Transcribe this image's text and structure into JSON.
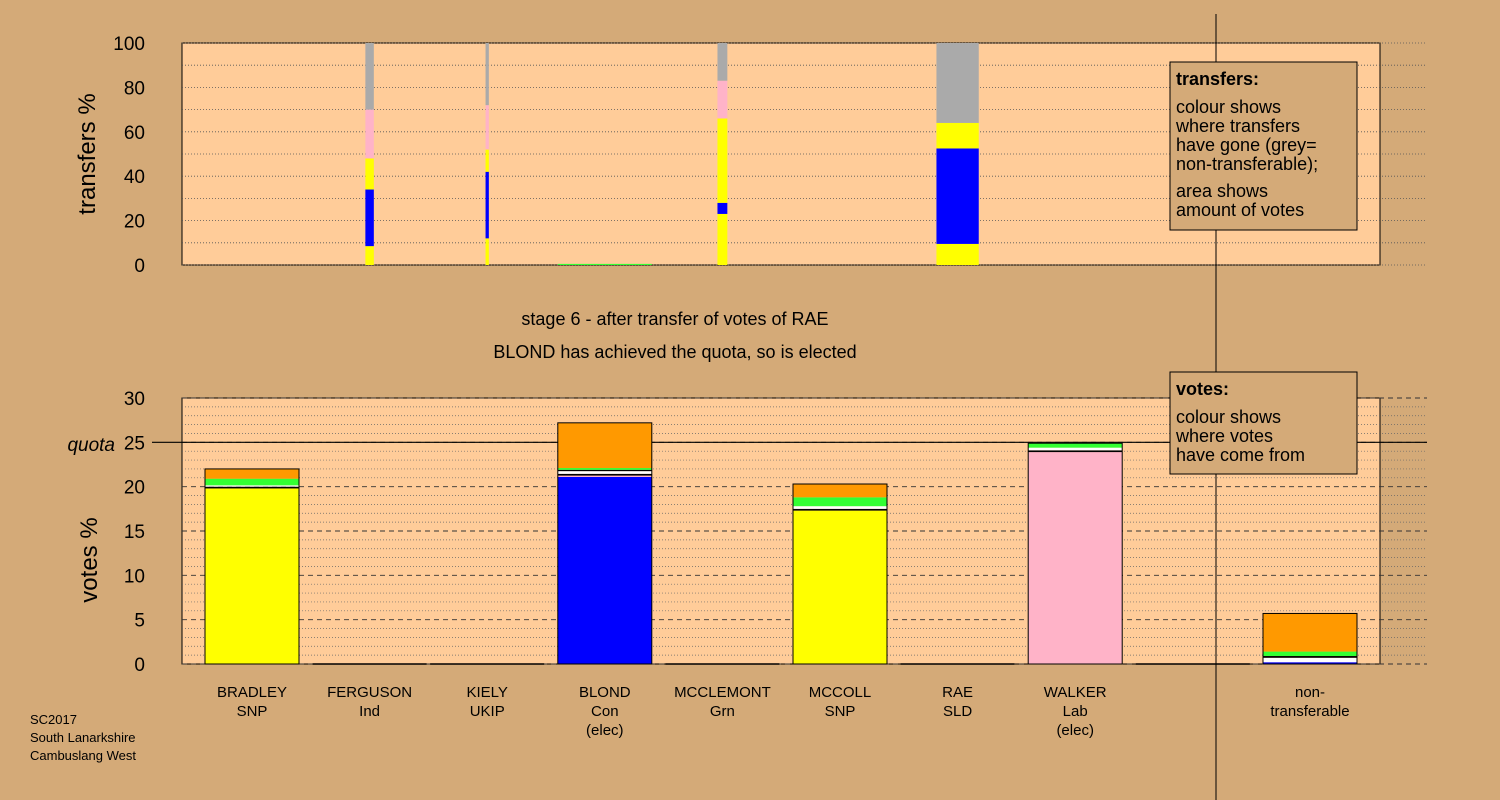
{
  "stage_text": {
    "line1": "stage 6 - after transfer of votes of RAE",
    "line2": "BLOND has achieved the quota, so is elected"
  },
  "footer": {
    "line1": "SC2017",
    "line2": "South Lanarkshire",
    "line3": "Cambuslang West"
  },
  "colors": {
    "background": "#d4aa78",
    "plot_bg": "#ffcc99",
    "SNP": "#ffff00",
    "Con": "#0000ff",
    "Lab": "#ffb3c8",
    "Grn": "#33ff33",
    "UKIP": "#ffffff",
    "Ind": "#000000",
    "SLD": "#ff9900",
    "nontransferable": "#aaaaaa"
  },
  "chart_data": [
    {
      "type": "bar",
      "stacked": true,
      "ylabel": "transfers %",
      "ylim": [
        0,
        100
      ],
      "yticks": [
        "0",
        "20",
        "40",
        "60",
        "80",
        "100"
      ],
      "grid": "dotted",
      "legend": {
        "position": "top-right",
        "title": "transfers:",
        "line1": "colour shows",
        "line2": "where transfers",
        "line3": "have gone (grey=",
        "line4": "non-transferable);",
        "line5": "area shows",
        "line6": "amount of votes"
      },
      "bars": [
        {
          "candidate": "FERGUSON",
          "width_share": 0.09,
          "segments": [
            {
              "party": "SNP",
              "value": 8.5
            },
            {
              "party": "Con",
              "value": 25.5
            },
            {
              "party": "SNP",
              "value": 14
            },
            {
              "party": "Lab",
              "value": 22
            },
            {
              "party": "nontransferable",
              "value": 30
            }
          ]
        },
        {
          "candidate": "KIELY",
          "width_share": 0.035,
          "segments": [
            {
              "party": "SNP",
              "value": 12
            },
            {
              "party": "Con",
              "value": 30
            },
            {
              "party": "SNP",
              "value": 10
            },
            {
              "party": "Lab",
              "value": 20
            },
            {
              "party": "nontransferable",
              "value": 28
            }
          ]
        },
        {
          "candidate": "MCCLEMONT",
          "width_share": 0.105,
          "segments": [
            {
              "party": "SNP",
              "value": 23
            },
            {
              "party": "Con",
              "value": 5
            },
            {
              "party": "SNP",
              "value": 38
            },
            {
              "party": "Lab",
              "value": 17
            },
            {
              "party": "nontransferable",
              "value": 17
            }
          ]
        },
        {
          "candidate": "RAE",
          "width_share": 0.45,
          "segments": [
            {
              "party": "SNP",
              "value": 9.5
            },
            {
              "party": "Con",
              "value": 43
            },
            {
              "party": "SNP",
              "value": 11.5
            },
            {
              "party": "nontransferable",
              "value": 36
            }
          ]
        },
        {
          "candidate": "BLOND",
          "width_share": 1.0,
          "segments": [
            {
              "party": "Grn",
              "value": 0.5
            }
          ]
        }
      ]
    },
    {
      "type": "bar",
      "stacked": true,
      "ylabel": "votes %",
      "ylim": [
        0,
        30
      ],
      "yticks": [
        "0",
        "5",
        "10",
        "15",
        "20",
        "25",
        "30"
      ],
      "quota": 25,
      "quota_label": "quota",
      "grid": "dotted",
      "legend": {
        "position": "top-right",
        "title": "votes:",
        "line1": "colour shows",
        "line2": "where votes",
        "line3": "have come from"
      },
      "categories": [
        {
          "name": "BRADLEY",
          "party": "SNP",
          "note": ""
        },
        {
          "name": "FERGUSON",
          "party": "Ind",
          "note": ""
        },
        {
          "name": "KIELY",
          "party": "UKIP",
          "note": ""
        },
        {
          "name": "BLOND",
          "party": "Con",
          "note": "(elec)"
        },
        {
          "name": "MCCLEMONT",
          "party": "Grn",
          "note": ""
        },
        {
          "name": "MCCOLL",
          "party": "SNP",
          "note": ""
        },
        {
          "name": "RAE",
          "party": "SLD",
          "note": ""
        },
        {
          "name": "WALKER",
          "party": "Lab",
          "note": "(elec)"
        },
        {
          "name": "",
          "party": "",
          "note": ""
        },
        {
          "name": "non-",
          "party": "transferable",
          "note": ""
        }
      ],
      "stacks": [
        [
          {
            "party": "SNP",
            "value": 19.8
          },
          {
            "party": "Ind",
            "value": 0.2
          },
          {
            "party": "UKIP",
            "value": 0.15
          },
          {
            "party": "Grn",
            "value": 0.75
          },
          {
            "party": "SLD",
            "value": 1.1
          }
        ],
        [],
        [],
        [
          {
            "party": "Con",
            "value": 21.1
          },
          {
            "party": "Lab",
            "value": 0.15
          },
          {
            "party": "Ind",
            "value": 0.2
          },
          {
            "party": "UKIP",
            "value": 0.3
          },
          {
            "party": "Ind",
            "value": 0.15
          },
          {
            "party": "Grn",
            "value": 0.2
          },
          {
            "party": "SLD",
            "value": 5.1
          }
        ],
        [],
        [
          {
            "party": "SNP",
            "value": 17.3
          },
          {
            "party": "Ind",
            "value": 0.2
          },
          {
            "party": "UKIP",
            "value": 0.3
          },
          {
            "party": "Grn",
            "value": 1.0
          },
          {
            "party": "SLD",
            "value": 1.5
          }
        ],
        [],
        [
          {
            "party": "Lab",
            "value": 23.9
          },
          {
            "party": "Ind",
            "value": 0.2
          },
          {
            "party": "UKIP",
            "value": 0.3
          },
          {
            "party": "Grn",
            "value": 0.5
          }
        ],
        [],
        [
          {
            "party": "Con",
            "value": 0.2
          },
          {
            "party": "UKIP",
            "value": 0.5
          },
          {
            "party": "Ind",
            "value": 0.2
          },
          {
            "party": "Grn",
            "value": 0.5
          },
          {
            "party": "SLD",
            "value": 4.3
          }
        ]
      ]
    }
  ]
}
